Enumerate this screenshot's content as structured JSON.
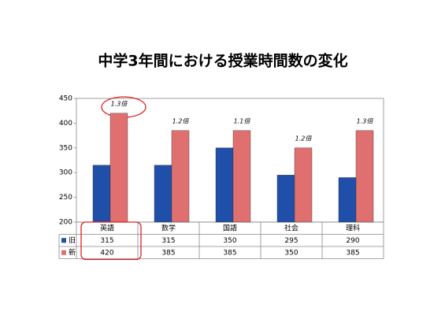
{
  "chart_data": {
    "type": "bar",
    "title": "中学3年間における授業時間数の変化",
    "categories": [
      "英語",
      "数学",
      "国語",
      "社会",
      "理科"
    ],
    "series": [
      {
        "name": "旧",
        "color": "#1f4fa8",
        "values": [
          315,
          315,
          350,
          295,
          290
        ]
      },
      {
        "name": "新",
        "color": "#e07070",
        "values": [
          420,
          385,
          385,
          350,
          385
        ]
      }
    ],
    "annotations": [
      "1.3倍",
      "1.2倍",
      "1.1倍",
      "1.2倍",
      "1.3倍"
    ],
    "ylim": [
      200,
      450
    ],
    "yticks": [
      200,
      250,
      300,
      350,
      400,
      450
    ],
    "grid": false
  }
}
